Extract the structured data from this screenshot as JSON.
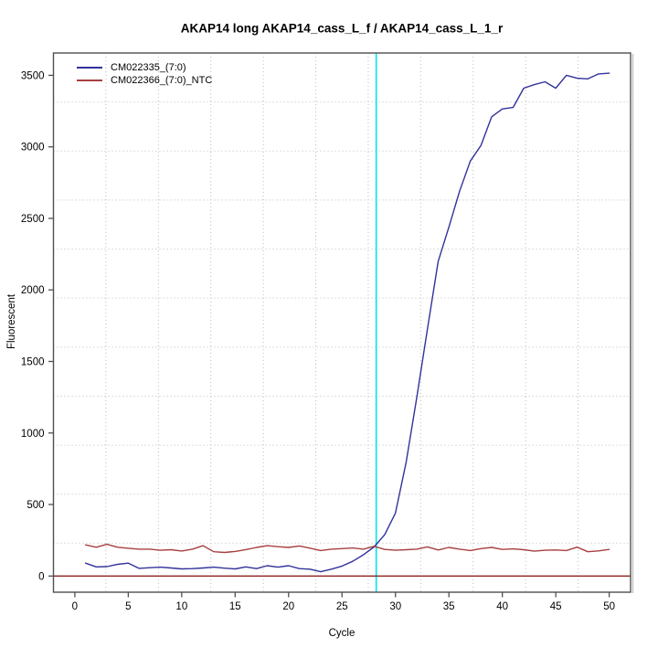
{
  "figure": {
    "background": "#FFFFFF"
  },
  "chart_data": {
    "type": "line",
    "title": "AKAP14 long AKAP14_cass_L_f / AKAP14_cass_L_1_r",
    "xlabel": "Cycle",
    "ylabel": "Fluorescent",
    "x_ticks": [
      0,
      5,
      10,
      15,
      20,
      25,
      30,
      35,
      40,
      45,
      50
    ],
    "y_ticks": [
      0,
      500,
      1000,
      1500,
      2000,
      2500,
      3000,
      3500
    ],
    "xlim": [
      -2,
      52
    ],
    "ylim": [
      -113,
      3656
    ],
    "grid": {
      "divisions": 11,
      "style": "dotted",
      "color": "#BDBDBD"
    },
    "legend_position": "top-left",
    "threshold_cycle": 28.2,
    "threshold_color": "#00E5EE",
    "zero_line": {
      "y": 0,
      "color": "#8B2222"
    },
    "box_color": "#4F4F4F",
    "x": [
      1,
      2,
      3,
      4,
      5,
      6,
      7,
      8,
      9,
      10,
      11,
      12,
      13,
      14,
      15,
      16,
      17,
      18,
      19,
      20,
      21,
      22,
      23,
      24,
      25,
      26,
      27,
      28,
      29,
      30,
      31,
      32,
      33,
      34,
      35,
      36,
      37,
      38,
      39,
      40,
      41,
      42,
      43,
      44,
      45,
      46,
      47,
      48,
      49,
      50
    ],
    "series": [
      {
        "name": "CM022335_(7:0)",
        "color": "#32329B",
        "values": [
          90,
          64,
          66,
          82,
          90,
          54,
          58,
          62,
          56,
          50,
          52,
          56,
          62,
          55,
          50,
          64,
          52,
          72,
          62,
          72,
          52,
          48,
          30,
          48,
          70,
          103,
          148,
          203,
          290,
          440,
          795,
          1250,
          1730,
          2200,
          2440,
          2690,
          2900,
          3010,
          3210,
          3265,
          3275,
          3410,
          3435,
          3455,
          3410,
          3500,
          3480,
          3475,
          3510,
          3515
        ]
      },
      {
        "name": "CM022366_(7:0)_NTC",
        "color": "#A84040",
        "values": [
          218,
          201,
          222,
          201,
          194,
          188,
          188,
          180,
          184,
          175,
          188,
          212,
          170,
          165,
          172,
          185,
          200,
          212,
          205,
          200,
          210,
          195,
          178,
          188,
          192,
          196,
          188,
          208,
          186,
          180,
          184,
          188,
          204,
          182,
          200,
          188,
          178,
          192,
          200,
          186,
          190,
          184,
          174,
          180,
          182,
          178,
          202,
          170,
          176,
          186
        ]
      }
    ]
  }
}
